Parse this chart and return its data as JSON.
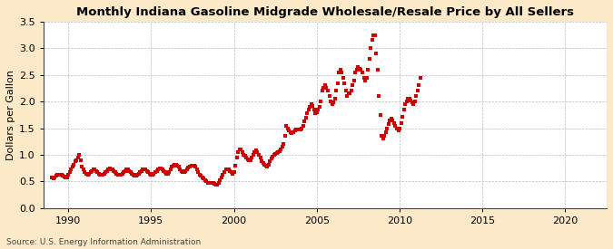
{
  "title": "Monthly Indiana Gasoline Midgrade Wholesale/Resale Price by All Sellers",
  "ylabel": "Dollars per Gallon",
  "source": "Source: U.S. Energy Information Administration",
  "fig_bg_color": "#fce9c8",
  "plot_bg_color": "#ffffff",
  "dot_color": "#cc0000",
  "xlim": [
    1988.5,
    2022.5
  ],
  "ylim": [
    0.0,
    3.5
  ],
  "xticks": [
    1990,
    1995,
    2000,
    2005,
    2010,
    2015,
    2020
  ],
  "yticks": [
    0.0,
    0.5,
    1.0,
    1.5,
    2.0,
    2.5,
    3.0,
    3.5
  ],
  "data": {
    "dates": [
      1989.0,
      1989.083,
      1989.167,
      1989.25,
      1989.333,
      1989.417,
      1989.5,
      1989.583,
      1989.667,
      1989.75,
      1989.833,
      1989.917,
      1990.0,
      1990.083,
      1990.167,
      1990.25,
      1990.333,
      1990.417,
      1990.5,
      1990.583,
      1990.667,
      1990.75,
      1990.833,
      1990.917,
      1991.0,
      1991.083,
      1991.167,
      1991.25,
      1991.333,
      1991.417,
      1991.5,
      1991.583,
      1991.667,
      1991.75,
      1991.833,
      1991.917,
      1992.0,
      1992.083,
      1992.167,
      1992.25,
      1992.333,
      1992.417,
      1992.5,
      1992.583,
      1992.667,
      1992.75,
      1992.833,
      1992.917,
      1993.0,
      1993.083,
      1993.167,
      1993.25,
      1993.333,
      1993.417,
      1993.5,
      1993.583,
      1993.667,
      1993.75,
      1993.833,
      1993.917,
      1994.0,
      1994.083,
      1994.167,
      1994.25,
      1994.333,
      1994.417,
      1994.5,
      1994.583,
      1994.667,
      1994.75,
      1994.833,
      1994.917,
      1995.0,
      1995.083,
      1995.167,
      1995.25,
      1995.333,
      1995.417,
      1995.5,
      1995.583,
      1995.667,
      1995.75,
      1995.833,
      1995.917,
      1996.0,
      1996.083,
      1996.167,
      1996.25,
      1996.333,
      1996.417,
      1996.5,
      1996.583,
      1996.667,
      1996.75,
      1996.833,
      1996.917,
      1997.0,
      1997.083,
      1997.167,
      1997.25,
      1997.333,
      1997.417,
      1997.5,
      1997.583,
      1997.667,
      1997.75,
      1997.833,
      1997.917,
      1998.0,
      1998.083,
      1998.167,
      1998.25,
      1998.333,
      1998.417,
      1998.5,
      1998.583,
      1998.667,
      1998.75,
      1998.833,
      1998.917,
      1999.0,
      1999.083,
      1999.167,
      1999.25,
      1999.333,
      1999.417,
      1999.5,
      1999.583,
      1999.667,
      1999.75,
      1999.833,
      1999.917,
      2000.0,
      2000.083,
      2000.167,
      2000.25,
      2000.333,
      2000.417,
      2000.5,
      2000.583,
      2000.667,
      2000.75,
      2000.833,
      2000.917,
      2001.0,
      2001.083,
      2001.167,
      2001.25,
      2001.333,
      2001.417,
      2001.5,
      2001.583,
      2001.667,
      2001.75,
      2001.833,
      2001.917,
      2002.0,
      2002.083,
      2002.167,
      2002.25,
      2002.333,
      2002.417,
      2002.5,
      2002.583,
      2002.667,
      2002.75,
      2002.833,
      2002.917,
      2003.0,
      2003.083,
      2003.167,
      2003.25,
      2003.333,
      2003.417,
      2003.5,
      2003.583,
      2003.667,
      2003.75,
      2003.833,
      2003.917,
      2004.0,
      2004.083,
      2004.167,
      2004.25,
      2004.333,
      2004.417,
      2004.5,
      2004.583,
      2004.667,
      2004.75,
      2004.833,
      2004.917,
      2005.0,
      2005.083,
      2005.167,
      2005.25,
      2005.333,
      2005.417,
      2005.5,
      2005.583,
      2005.667,
      2005.75,
      2005.833,
      2005.917,
      2006.0,
      2006.083,
      2006.167,
      2006.25,
      2006.333,
      2006.417,
      2006.5,
      2006.583,
      2006.667,
      2006.75,
      2006.833,
      2006.917,
      2007.0,
      2007.083,
      2007.167,
      2007.25,
      2007.333,
      2007.417,
      2007.5,
      2007.583,
      2007.667,
      2007.75,
      2007.833,
      2007.917,
      2008.0,
      2008.083,
      2008.167,
      2008.25,
      2008.333,
      2008.417,
      2008.5,
      2008.583,
      2008.667,
      2008.75,
      2008.833,
      2008.917,
      2009.0,
      2009.083,
      2009.167,
      2009.25,
      2009.333,
      2009.417,
      2009.5,
      2009.583,
      2009.667,
      2009.75,
      2009.833,
      2009.917,
      2010.0,
      2010.083,
      2010.167,
      2010.25,
      2010.333,
      2010.417,
      2010.5,
      2010.583,
      2010.667,
      2010.75,
      2010.833,
      2010.917,
      2011.0,
      2011.083,
      2011.167,
      2011.25
    ],
    "prices": [
      0.57,
      0.55,
      0.57,
      0.6,
      0.62,
      0.63,
      0.63,
      0.62,
      0.6,
      0.59,
      0.58,
      0.58,
      0.62,
      0.67,
      0.72,
      0.77,
      0.82,
      0.88,
      0.9,
      0.95,
      1.0,
      0.9,
      0.78,
      0.72,
      0.68,
      0.65,
      0.63,
      0.65,
      0.67,
      0.7,
      0.72,
      0.72,
      0.7,
      0.68,
      0.65,
      0.62,
      0.62,
      0.63,
      0.65,
      0.67,
      0.7,
      0.72,
      0.74,
      0.73,
      0.72,
      0.7,
      0.68,
      0.65,
      0.63,
      0.62,
      0.63,
      0.65,
      0.67,
      0.7,
      0.72,
      0.72,
      0.7,
      0.68,
      0.65,
      0.62,
      0.6,
      0.61,
      0.63,
      0.65,
      0.67,
      0.7,
      0.72,
      0.73,
      0.72,
      0.7,
      0.67,
      0.64,
      0.62,
      0.63,
      0.65,
      0.68,
      0.7,
      0.73,
      0.75,
      0.75,
      0.73,
      0.7,
      0.67,
      0.64,
      0.65,
      0.68,
      0.72,
      0.77,
      0.8,
      0.82,
      0.82,
      0.8,
      0.77,
      0.73,
      0.7,
      0.67,
      0.68,
      0.7,
      0.73,
      0.76,
      0.78,
      0.8,
      0.8,
      0.79,
      0.77,
      0.73,
      0.68,
      0.63,
      0.6,
      0.58,
      0.55,
      0.53,
      0.5,
      0.48,
      0.47,
      0.47,
      0.47,
      0.47,
      0.45,
      0.44,
      0.44,
      0.48,
      0.52,
      0.57,
      0.62,
      0.68,
      0.72,
      0.73,
      0.72,
      0.7,
      0.67,
      0.65,
      0.68,
      0.8,
      0.95,
      1.05,
      1.1,
      1.1,
      1.05,
      1.0,
      0.98,
      0.95,
      0.92,
      0.9,
      0.9,
      0.95,
      1.0,
      1.05,
      1.08,
      1.05,
      1.0,
      0.95,
      0.88,
      0.85,
      0.82,
      0.8,
      0.78,
      0.82,
      0.88,
      0.93,
      0.97,
      1.0,
      1.02,
      1.03,
      1.05,
      1.07,
      1.1,
      1.15,
      1.2,
      1.35,
      1.55,
      1.5,
      1.45,
      1.42,
      1.4,
      1.42,
      1.45,
      1.47,
      1.48,
      1.47,
      1.48,
      1.5,
      1.55,
      1.62,
      1.7,
      1.78,
      1.85,
      1.9,
      1.95,
      1.92,
      1.85,
      1.78,
      1.8,
      1.85,
      1.9,
      2.0,
      2.2,
      2.25,
      2.3,
      2.25,
      2.2,
      2.1,
      2.0,
      1.95,
      1.98,
      2.05,
      2.2,
      2.35,
      2.55,
      2.6,
      2.55,
      2.45,
      2.35,
      2.2,
      2.1,
      2.15,
      2.15,
      2.2,
      2.3,
      2.4,
      2.55,
      2.6,
      2.65,
      2.62,
      2.6,
      2.55,
      2.45,
      2.4,
      2.45,
      2.6,
      2.8,
      3.0,
      3.15,
      3.25,
      3.25,
      2.9,
      2.6,
      2.1,
      1.75,
      1.35,
      1.3,
      1.35,
      1.42,
      1.5,
      1.58,
      1.65,
      1.68,
      1.65,
      1.6,
      1.55,
      1.5,
      1.45,
      1.5,
      1.6,
      1.72,
      1.85,
      1.95,
      2.0,
      2.05,
      2.05,
      2.02,
      1.98,
      1.95,
      2.0,
      2.1,
      2.2,
      2.3,
      2.45
    ]
  }
}
